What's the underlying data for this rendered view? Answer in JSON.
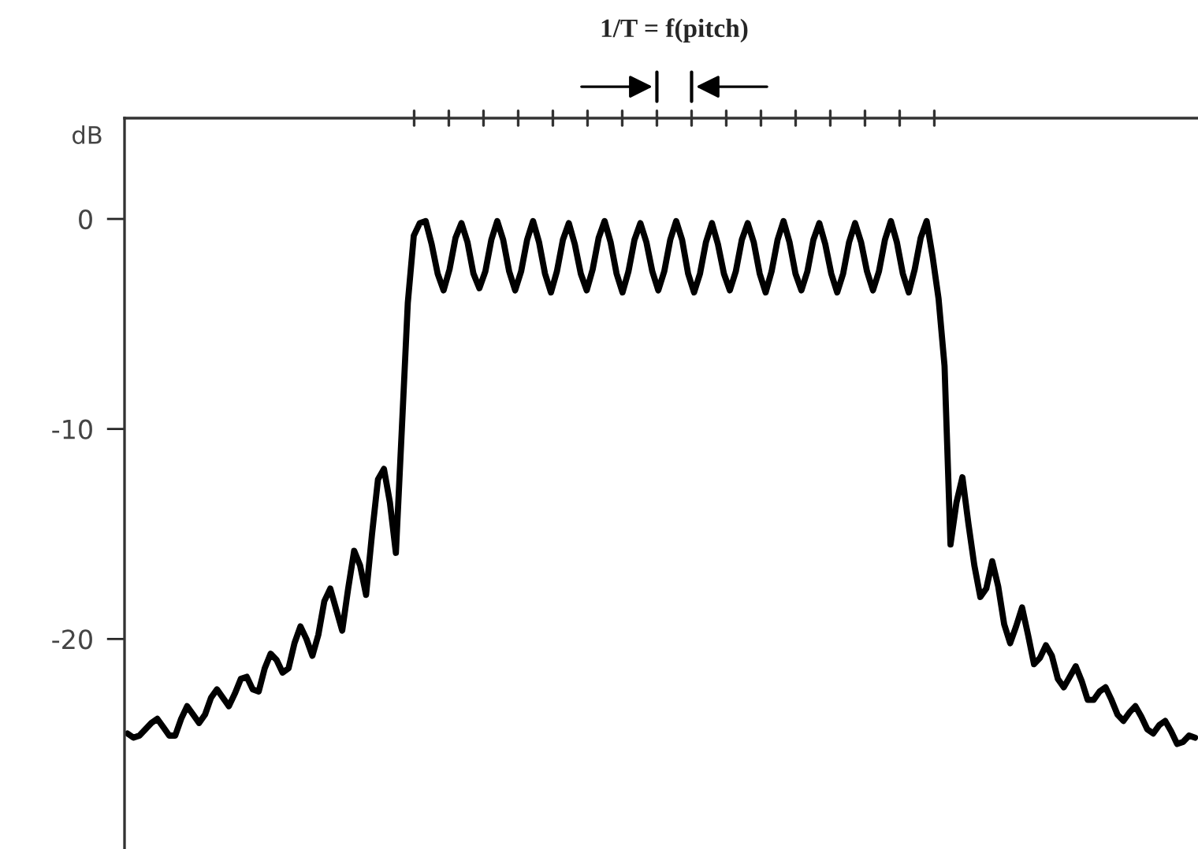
{
  "chart_data": {
    "type": "line",
    "annotations": [
      "1/T = f(pitch)"
    ],
    "ylabel": "dB",
    "ylim": [
      -30,
      4.8
    ],
    "yticks": [
      -20,
      -10,
      0
    ],
    "tick_labels": "y",
    "categories": [
      null,
      null,
      null,
      null,
      null,
      null,
      null,
      null,
      null,
      null,
      null,
      null,
      null,
      null,
      null,
      null,
      null,
      null,
      null,
      null,
      null,
      null,
      null,
      null,
      null,
      null,
      null,
      null,
      null,
      null,
      null,
      null,
      null,
      null,
      null,
      null,
      null,
      null,
      null,
      null,
      null,
      null,
      null,
      null,
      null,
      null,
      null,
      null,
      null,
      null,
      null,
      null,
      null,
      null,
      null,
      null,
      null,
      null,
      null,
      null,
      null,
      null,
      null,
      null,
      null,
      null,
      null,
      null,
      null,
      null,
      null,
      null,
      null,
      null,
      null,
      null,
      null,
      null,
      null,
      null,
      null,
      null,
      null,
      null,
      null,
      null,
      null,
      null,
      null,
      null,
      null,
      null,
      null,
      null,
      null,
      null,
      null,
      null,
      null,
      null,
      null,
      null,
      null,
      null,
      null,
      null,
      null,
      null,
      null,
      null,
      null,
      null,
      null,
      null,
      null,
      null,
      null,
      null,
      null,
      null,
      null,
      null,
      null,
      null,
      null,
      null,
      null,
      null,
      null,
      null,
      null,
      null,
      null,
      null,
      null,
      null,
      null,
      null,
      null,
      null,
      null,
      null,
      null,
      null,
      null,
      null,
      null,
      null,
      null,
      null,
      null,
      null,
      null,
      null,
      null,
      null,
      null,
      null,
      null,
      null,
      null,
      null,
      null,
      null,
      null,
      null,
      null,
      null,
      null,
      null,
      null,
      null,
      null,
      null,
      null,
      null,
      null,
      null,
      null,
      null
    ],
    "series": [
      {
        "color": "#000000",
        "values": [
          -24.5,
          -24.7,
          -24.6,
          -24.3,
          -24.0,
          -23.8,
          -24.2,
          -24.6,
          -24.6,
          -23.8,
          -23.2,
          -23.6,
          -24.0,
          -23.6,
          -22.8,
          -22.4,
          -22.8,
          -23.2,
          -22.6,
          -21.9,
          -21.8,
          -22.4,
          -22.5,
          -21.4,
          -20.7,
          -21.0,
          -21.6,
          -21.4,
          -20.2,
          -19.4,
          -20.0,
          -20.8,
          -19.8,
          -18.2,
          -17.6,
          -18.6,
          -19.6,
          -17.6,
          -15.8,
          -16.5,
          -17.9,
          -15.0,
          -12.4,
          -11.9,
          -13.5,
          -15.9,
          -10.0,
          -4.0,
          -0.8,
          -0.2,
          -0.1,
          -1.2,
          -2.6,
          -3.4,
          -2.4,
          -0.9,
          -0.2,
          -1.1,
          -2.6,
          -3.3,
          -2.5,
          -1.0,
          -0.1,
          -1.0,
          -2.5,
          -3.4,
          -2.5,
          -1.0,
          -0.1,
          -1.1,
          -2.6,
          -3.5,
          -2.5,
          -1.0,
          -0.2,
          -1.2,
          -2.6,
          -3.4,
          -2.4,
          -0.9,
          -0.1,
          -1.1,
          -2.6,
          -3.5,
          -2.5,
          -1.0,
          -0.2,
          -1.1,
          -2.5,
          -3.4,
          -2.5,
          -1.0,
          -0.1,
          -1.0,
          -2.6,
          -3.5,
          -2.6,
          -1.1,
          -0.2,
          -1.2,
          -2.6,
          -3.4,
          -2.5,
          -1.0,
          -0.2,
          -1.1,
          -2.6,
          -3.5,
          -2.5,
          -1.0,
          -0.1,
          -1.1,
          -2.6,
          -3.4,
          -2.5,
          -1.0,
          -0.2,
          -1.2,
          -2.6,
          -3.5,
          -2.6,
          -1.1,
          -0.2,
          -1.1,
          -2.5,
          -3.4,
          -2.5,
          -1.0,
          -0.1,
          -1.1,
          -2.6,
          -3.5,
          -2.4,
          -0.9,
          -0.1,
          -1.8,
          -3.8,
          -7.0,
          -15.5,
          -13.5,
          -12.3,
          -14.5,
          -16.5,
          -18.0,
          -17.6,
          -16.3,
          -17.5,
          -19.3,
          -20.2,
          -19.4,
          -18.5,
          -19.8,
          -21.2,
          -20.9,
          -20.3,
          -20.8,
          -21.9,
          -22.3,
          -21.8,
          -21.3,
          -22.0,
          -22.9,
          -22.9,
          -22.5,
          -22.3,
          -22.9,
          -23.6,
          -23.9,
          -23.5,
          -23.2,
          -23.7,
          -24.3,
          -24.5,
          -24.1,
          -23.9,
          -24.4,
          -25.0,
          -24.9,
          -24.6,
          -24.7
        ]
      }
    ]
  }
}
